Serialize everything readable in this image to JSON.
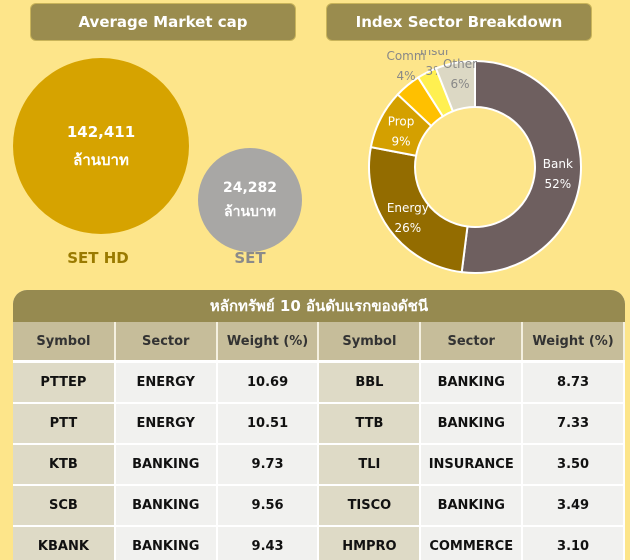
{
  "left": {
    "title": "Average Market cap",
    "bubbles": [
      {
        "value": "142,411",
        "unit": "ล้านบาท",
        "label": "SET HD",
        "color": "#d6a300"
      },
      {
        "value": "24,282",
        "unit": "ล้านบาท",
        "label": "SET",
        "color": "#a8a7a5"
      }
    ]
  },
  "chart_data": {
    "type": "pie",
    "title": "Index Sector Breakdown",
    "donut": true,
    "categories": [
      "Bank",
      "Energy",
      "Prop",
      "Comm",
      "Insur",
      "Other"
    ],
    "values": [
      52,
      26,
      9,
      4,
      3,
      6
    ],
    "labels": [
      "52%",
      "26%",
      "9%",
      "4%",
      "3%",
      "6%"
    ],
    "colors": [
      "#6e5f5f",
      "#936c00",
      "#d4a000",
      "#ffc000",
      "#fff050",
      "#dcd8c4"
    ]
  },
  "table": {
    "title": "หลักทรัพย์ 10 อันดับแรกของดัชนี",
    "headers": [
      "Symbol",
      "Sector",
      "Weight (%)",
      "Symbol",
      "Sector",
      "Weight (%)"
    ],
    "rows": [
      [
        "PTTEP",
        "ENERGY",
        "10.69",
        "BBL",
        "BANKING",
        "8.73"
      ],
      [
        "PTT",
        "ENERGY",
        "10.51",
        "TTB",
        "BANKING",
        "7.33"
      ],
      [
        "KTB",
        "BANKING",
        "9.73",
        "TLI",
        "INSURANCE",
        "3.50"
      ],
      [
        "SCB",
        "BANKING",
        "9.56",
        "TISCO",
        "BANKING",
        "3.49"
      ],
      [
        "KBANK",
        "BANKING",
        "9.43",
        "HMPRO",
        "COMMERCE",
        "3.10"
      ]
    ]
  }
}
